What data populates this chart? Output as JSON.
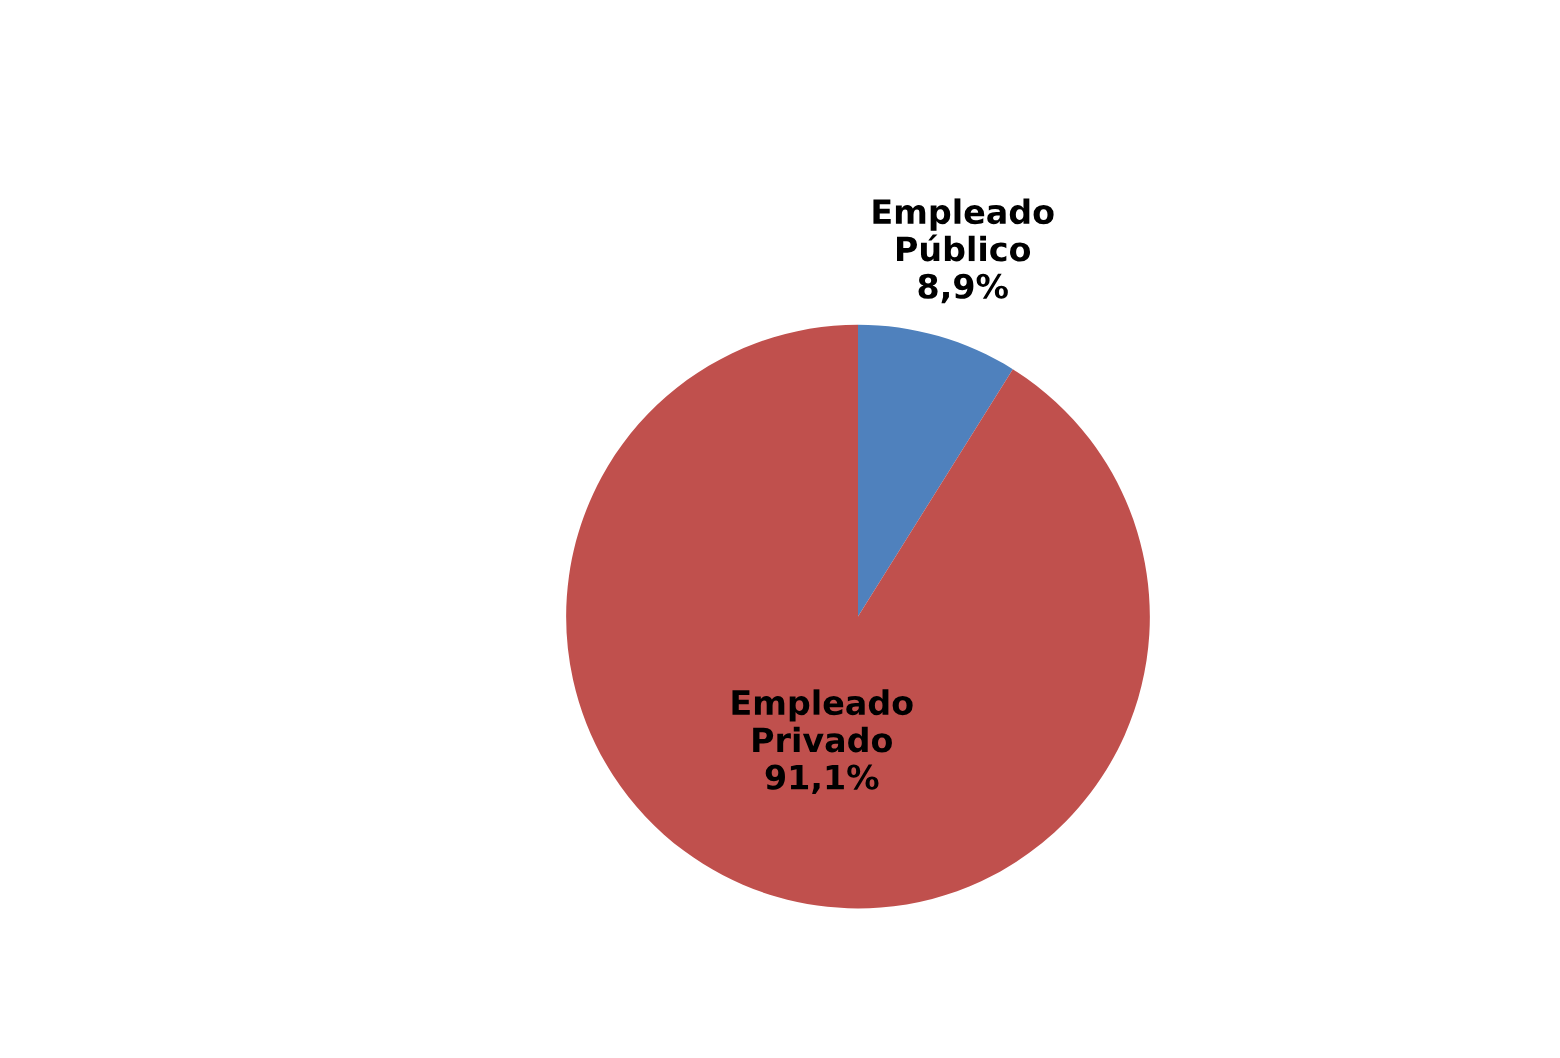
{
  "chart_data": {
    "type": "pie",
    "categories": [
      "Empleado Público",
      "Empleado Privado"
    ],
    "values": [
      8.9,
      91.1
    ],
    "colors": [
      "#4f81bd",
      "#c0504d"
    ],
    "value_labels": [
      "8,9%",
      "91,1%"
    ],
    "legend": false
  }
}
